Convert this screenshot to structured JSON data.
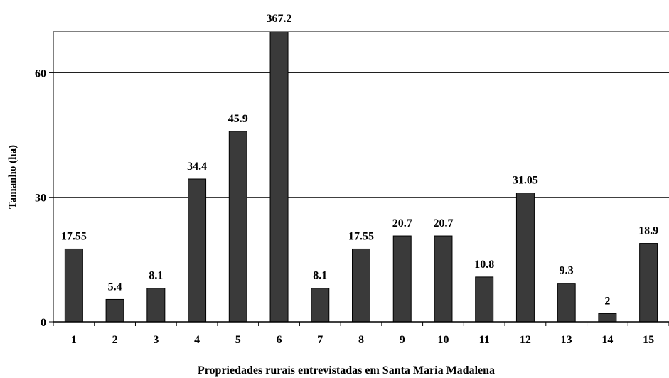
{
  "chart_data": {
    "type": "bar",
    "categories": [
      "1",
      "2",
      "3",
      "4",
      "5",
      "6",
      "7",
      "8",
      "9",
      "10",
      "11",
      "12",
      "13",
      "14",
      "15"
    ],
    "values": [
      17.55,
      5.4,
      8.1,
      34.4,
      45.9,
      367.2,
      8.1,
      17.55,
      20.7,
      20.7,
      10.8,
      31.05,
      9.3,
      2,
      18.9
    ],
    "data_labels": [
      "17.55",
      "5.4",
      "8.1",
      "34.4",
      "45.9",
      "367.2",
      "8.1",
      "17.55",
      "20.7",
      "20.7",
      "10.8",
      "31.05",
      "9.3",
      "2",
      "18.9"
    ],
    "xlabel": "Propriedades rurais entrevistadas em Santa Maria Madalena",
    "ylabel": "Tamanho (ha)",
    "ylim": [
      0,
      70
    ],
    "yticks": [
      0,
      30,
      60
    ],
    "grid": true,
    "colors": {
      "bar": "#3a3a3a",
      "bar_stroke": "#000000",
      "grid": "#000000",
      "frame": "#808080"
    }
  }
}
